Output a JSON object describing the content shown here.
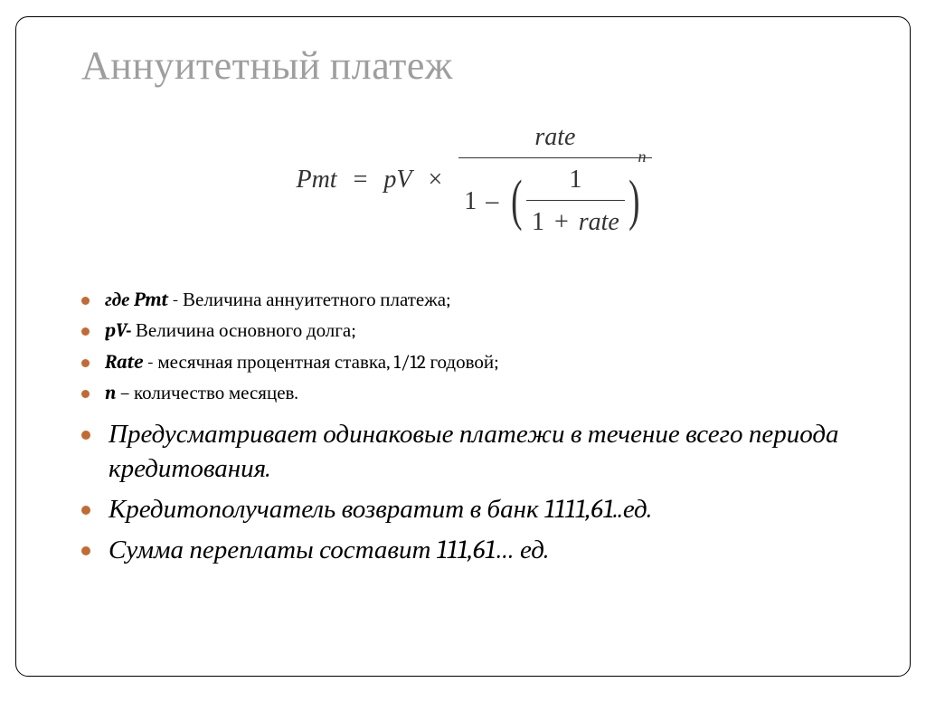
{
  "title": "Аннуитетный платеж",
  "formula": {
    "lhs": "Pmt",
    "eq": "=",
    "pv": "pV",
    "times": "×",
    "rate": "rate",
    "one": "1",
    "minus": "–",
    "plus": "+",
    "exp": "n"
  },
  "defs": [
    {
      "term": "где Pmt",
      "text": " - Величина аннуитетного платежа;"
    },
    {
      "term": "pV-",
      "text": " Величина основного долга;"
    },
    {
      "term": "Rate",
      "text": " - месячная процентная ставка, 1/12 годовой;"
    },
    {
      "term": "n",
      "text": " – количество месяцев."
    }
  ],
  "notes": [
    "Предусматривает одинаковые платежи в течение всего периода кредитования.",
    "Кредитополучатель возвратит в банк 1111,61..ед.",
    "Сумма переплаты составит  111,61… ед."
  ],
  "style": {
    "bullet_color": "#c26a33",
    "title_color": "#9e9e9e",
    "title_fontsize": 44,
    "def_fontsize": 21,
    "note_fontsize": 29,
    "formula_fontsize": 28,
    "border_radius": 14
  }
}
